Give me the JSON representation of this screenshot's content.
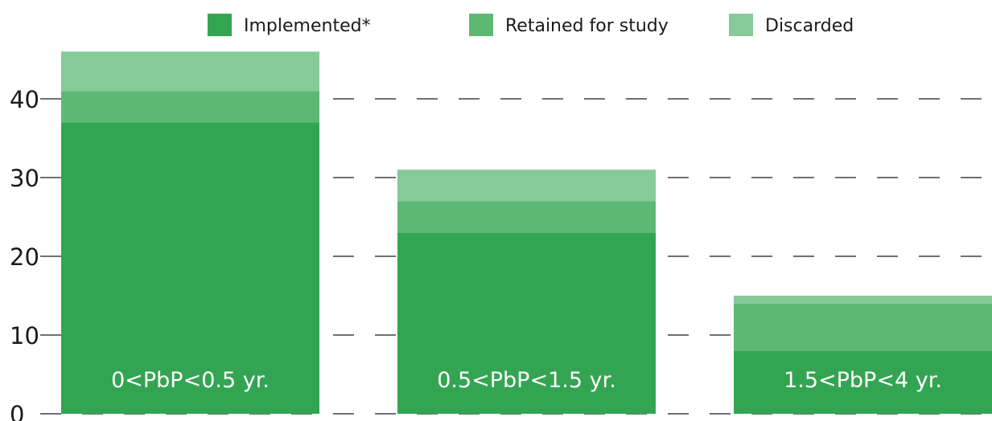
{
  "chart_data": {
    "type": "bar",
    "stacked": true,
    "categories": [
      "0<PbP<0.5 yr.",
      "0.5<PbP<1.5 yr.",
      "1.5<PbP<4 yr."
    ],
    "series": [
      {
        "name": "Implemented*",
        "values": [
          37,
          23,
          8
        ]
      },
      {
        "name": "Retained for study",
        "values": [
          4,
          4,
          6
        ]
      },
      {
        "name": "Discarded",
        "values": [
          5,
          4,
          1
        ]
      }
    ],
    "yticks": [
      0,
      10,
      20,
      30,
      40
    ],
    "ylim": [
      0,
      46
    ],
    "grid": true,
    "legend_position": "top",
    "category_labels_inside_bars": true,
    "colors": {
      "Implemented*": "#33a552",
      "Retained for study": "#5cb873",
      "Discarded": "#85ca97",
      "text": "#1a1a1a",
      "category_label": "#ffffff"
    }
  }
}
